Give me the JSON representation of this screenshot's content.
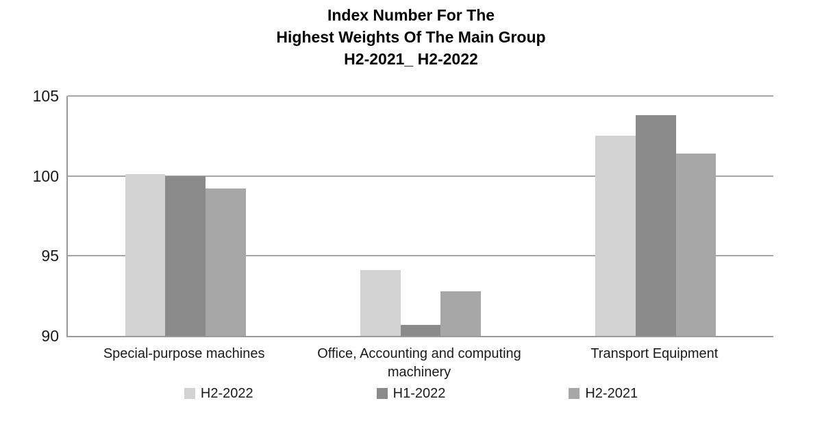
{
  "chart_data": {
    "type": "bar",
    "title": {
      "line1": "Index Number For The",
      "line2": "Highest Weights Of The Main Group",
      "line3": "H2-2021_ H2-2022"
    },
    "categories": [
      "Special-purpose machines",
      "Office, Accounting  and computing machinery",
      "Transport Equipment"
    ],
    "series": [
      {
        "name": "H2-2022",
        "color": "#d2d2d2",
        "values": [
          100.1,
          94.1,
          102.5
        ]
      },
      {
        "name": "H1-2022",
        "color": "#8a8a8a",
        "values": [
          100.0,
          90.7,
          103.8
        ]
      },
      {
        "name": "H2-2021",
        "color": "#a7a7a7",
        "values": [
          99.2,
          92.8,
          101.4
        ]
      }
    ],
    "ylim": [
      90,
      105
    ],
    "yticks": [
      90,
      95,
      100,
      105
    ],
    "grid": true,
    "legend_position": "bottom",
    "colors": {
      "gridline": "#a6a6a6",
      "axis": "#9a9a9a",
      "text": "#1a1a1a",
      "title_text": "#000000"
    }
  }
}
